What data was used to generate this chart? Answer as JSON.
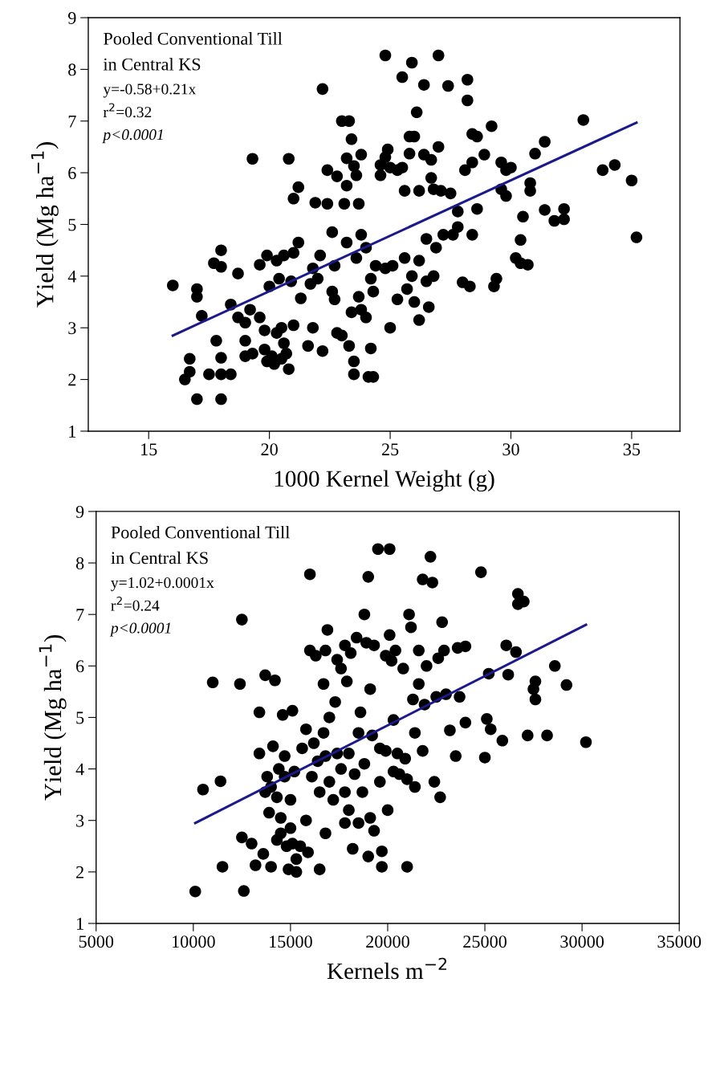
{
  "chart_data": [
    {
      "type": "scatter",
      "xlabel": "1000 Kernel Weight (g)",
      "ylabel": "Yield (Mg ha$^{−1}$)",
      "annotations": [
        "Pooled Conventional Till",
        "in Central KS",
        "y=-0.58+0.21x",
        "r$^{2}$=0.32",
        "p<0.0001"
      ],
      "xlim": [
        12.5,
        37
      ],
      "xticks": [
        15,
        20,
        25,
        30,
        35
      ],
      "ylim": [
        1,
        9
      ],
      "yticks": [
        1,
        2,
        3,
        4,
        5,
        6,
        7,
        8,
        9
      ],
      "grid": false,
      "legend": false,
      "marker": "circle",
      "series": [
        {
          "color": "#000000",
          "x": [
            16.0,
            16.5,
            16.7,
            16.7,
            17.0,
            17.0,
            17.0,
            17.2,
            17.5,
            17.7,
            17.8,
            18.0,
            18.0,
            18.0,
            18.0,
            18.0,
            18.4,
            18.4,
            18.7,
            18.7,
            19.0,
            19.0,
            19.0,
            19.2,
            19.3,
            19.3,
            19.6,
            19.6,
            19.8,
            19.8,
            19.9,
            19.9,
            20.0,
            20.1,
            20.2,
            20.3,
            20.3,
            20.4,
            20.5,
            20.5,
            20.6,
            20.6,
            20.7,
            20.8,
            20.8,
            20.9,
            21.0,
            21.0,
            21.0,
            21.2,
            21.2,
            21.3,
            21.6,
            21.7,
            21.8,
            21.8,
            21.9,
            22.0,
            22.1,
            22.2,
            22.2,
            22.4,
            22.4,
            22.6,
            22.6,
            22.7,
            22.7,
            22.8,
            22.8,
            23.0,
            23.0,
            23.1,
            23.2,
            23.2,
            23.2,
            23.3,
            23.3,
            23.4,
            23.4,
            23.5,
            23.5,
            23.5,
            23.6,
            23.6,
            23.7,
            23.7,
            23.8,
            23.8,
            23.8,
            24.0,
            24.0,
            24.1,
            24.2,
            24.2,
            24.3,
            24.3,
            24.4,
            24.6,
            24.6,
            24.8,
            24.8,
            24.8,
            24.9,
            25.0,
            25.0,
            25.1,
            25.3,
            25.3,
            25.5,
            25.5,
            25.6,
            25.6,
            25.7,
            25.8,
            25.8,
            25.9,
            25.9,
            26.0,
            26.0,
            26.1,
            26.2,
            26.2,
            26.2,
            26.4,
            26.4,
            26.5,
            26.5,
            26.6,
            26.7,
            26.7,
            26.8,
            26.8,
            26.9,
            27.0,
            27.0,
            27.1,
            27.2,
            27.4,
            27.5,
            27.6,
            27.8,
            27.8,
            28.0,
            28.1,
            28.2,
            28.2,
            28.3,
            28.4,
            28.4,
            28.4,
            28.6,
            28.6,
            28.9,
            29.2,
            29.3,
            29.4,
            29.6,
            29.6,
            29.8,
            29.8,
            30.0,
            30.2,
            30.4,
            30.4,
            30.5,
            30.7,
            30.8,
            30.8,
            31.0,
            31.4,
            31.4,
            31.8,
            32.2,
            32.2,
            33.0,
            33.8,
            34.3,
            35.0,
            35.2
          ],
          "values": [
            3.82,
            2.0,
            2.4,
            2.15,
            3.75,
            3.6,
            1.62,
            3.23,
            2.1,
            4.25,
            2.75,
            4.5,
            4.18,
            2.1,
            1.62,
            2.42,
            2.1,
            3.45,
            4.05,
            3.2,
            3.1,
            2.75,
            2.45,
            3.35,
            6.27,
            2.5,
            4.22,
            3.2,
            2.58,
            2.95,
            4.4,
            2.35,
            3.8,
            2.45,
            2.3,
            4.3,
            2.9,
            3.95,
            2.4,
            3.0,
            4.4,
            2.7,
            2.5,
            2.2,
            6.27,
            3.9,
            4.45,
            3.05,
            5.5,
            5.72,
            4.65,
            3.57,
            2.65,
            3.85,
            4.15,
            3.0,
            5.42,
            3.95,
            4.4,
            7.62,
            2.55,
            6.05,
            5.4,
            4.85,
            3.7,
            3.55,
            4.2,
            5.93,
            2.9,
            2.85,
            7.0,
            5.4,
            6.28,
            5.75,
            4.65,
            2.65,
            7.0,
            3.3,
            6.65,
            2.1,
            2.35,
            6.13,
            5.95,
            4.35,
            3.6,
            5.4,
            6.35,
            4.8,
            3.35,
            4.55,
            3.2,
            2.05,
            2.6,
            3.95,
            3.7,
            2.05,
            4.2,
            6.15,
            5.95,
            8.27,
            6.3,
            4.15,
            6.45,
            6.1,
            3.0,
            4.2,
            6.05,
            3.55,
            7.85,
            6.1,
            5.65,
            4.35,
            3.75,
            6.7,
            6.37,
            8.13,
            4.0,
            6.7,
            3.5,
            7.17,
            5.65,
            3.15,
            4.3,
            7.7,
            6.35,
            4.72,
            3.9,
            3.4,
            6.25,
            5.9,
            5.68,
            4.0,
            4.55,
            8.27,
            6.5,
            5.65,
            4.8,
            7.68,
            5.6,
            4.8,
            4.95,
            5.25,
            3.88,
            6.05,
            7.8,
            7.4,
            3.8,
            6.75,
            6.2,
            4.8,
            6.7,
            5.3,
            6.35,
            6.9,
            3.8,
            3.95,
            6.2,
            5.68,
            6.05,
            5.55,
            6.1,
            4.35,
            4.7,
            4.25,
            5.15,
            4.22,
            5.8,
            5.65,
            6.37,
            6.6,
            5.28,
            5.07,
            5.3,
            5.1,
            7.02,
            6.05,
            6.15,
            5.85,
            4.75
          ]
        },
        {
          "type": "line",
          "color": "#1a1a8c",
          "marker": "none",
          "x": [
            16.0,
            35.2
          ],
          "values": [
            2.85,
            6.97
          ]
        }
      ]
    },
    {
      "type": "scatter",
      "xlabel": "Kernels m$^{−2}$",
      "ylabel": "Yield (Mg ha$^{−1}$)",
      "annotations": [
        "Pooled Conventional Till",
        "in Central KS",
        "y=1.02+0.0001x",
        "r$^{2}$=0.24",
        "p<0.0001"
      ],
      "xlim": [
        5000,
        35000
      ],
      "xticks": [
        5000,
        10000,
        15000,
        20000,
        25000,
        30000,
        35000
      ],
      "ylim": [
        1,
        9
      ],
      "yticks": [
        1,
        2,
        3,
        4,
        5,
        6,
        7,
        8,
        9
      ],
      "grid": false,
      "legend": false,
      "marker": "circle",
      "series": [
        {
          "color": "#000000",
          "x": [
            10100,
            10500,
            11000,
            11400,
            11500,
            12400,
            12500,
            12500,
            12600,
            13000,
            13200,
            13400,
            13400,
            13600,
            13700,
            13700,
            13800,
            13900,
            14000,
            14000,
            14100,
            14200,
            14300,
            14300,
            14400,
            14500,
            14500,
            14600,
            14700,
            14700,
            14800,
            14900,
            15000,
            15000,
            15100,
            15100,
            15200,
            15300,
            15300,
            15500,
            15600,
            15800,
            15800,
            15900,
            16000,
            16000,
            16100,
            16200,
            16300,
            16400,
            16500,
            16500,
            16700,
            16700,
            16800,
            16800,
            16800,
            16900,
            17000,
            17000,
            17200,
            17300,
            17400,
            17400,
            17600,
            17600,
            17800,
            17800,
            17800,
            17900,
            18000,
            18000,
            18100,
            18200,
            18300,
            18400,
            18500,
            18500,
            18600,
            18700,
            18800,
            18800,
            18900,
            19000,
            19000,
            19100,
            19100,
            19200,
            19300,
            19300,
            19500,
            19600,
            19600,
            19700,
            19700,
            19900,
            19900,
            20000,
            20100,
            20100,
            20200,
            20300,
            20300,
            20400,
            20500,
            20600,
            20800,
            20900,
            21000,
            21000,
            21100,
            21200,
            21300,
            21400,
            21400,
            21600,
            21600,
            21800,
            21800,
            21900,
            22000,
            22200,
            22300,
            22400,
            22500,
            22600,
            22700,
            22800,
            22900,
            23000,
            23200,
            23500,
            23600,
            23700,
            24000,
            24000,
            24800,
            25000,
            25100,
            25200,
            25300,
            25900,
            26100,
            26200,
            26600,
            26700,
            26700,
            27000,
            27200,
            27500,
            27600,
            27600,
            28200,
            28600,
            29200,
            30200
          ],
          "values": [
            1.62,
            3.6,
            5.68,
            3.76,
            2.1,
            5.65,
            2.67,
            6.9,
            1.63,
            2.55,
            2.13,
            5.1,
            4.3,
            2.35,
            3.55,
            5.82,
            3.85,
            3.15,
            2.1,
            3.65,
            4.44,
            5.72,
            2.62,
            3.45,
            4.0,
            3.05,
            2.75,
            5.05,
            4.25,
            3.85,
            2.5,
            2.05,
            3.4,
            2.85,
            5.13,
            2.55,
            3.95,
            2.25,
            2.0,
            2.5,
            4.4,
            4.77,
            3.0,
            2.38,
            7.78,
            6.3,
            3.85,
            4.5,
            6.2,
            4.15,
            2.05,
            3.55,
            5.65,
            4.7,
            6.3,
            4.25,
            2.75,
            6.7,
            5.0,
            3.75,
            3.4,
            5.3,
            6.12,
            4.3,
            5.95,
            4.0,
            6.4,
            2.95,
            3.55,
            5.7,
            4.3,
            3.2,
            6.25,
            2.45,
            3.9,
            6.55,
            4.7,
            2.95,
            5.1,
            3.55,
            7.0,
            4.1,
            6.45,
            7.73,
            2.3,
            5.55,
            3.05,
            4.65,
            6.4,
            2.8,
            8.27,
            4.4,
            3.75,
            2.1,
            2.4,
            6.2,
            4.35,
            3.2,
            8.27,
            6.6,
            6.1,
            4.95,
            3.95,
            6.3,
            4.3,
            3.9,
            5.95,
            4.2,
            3.8,
            2.1,
            7.0,
            6.75,
            5.35,
            4.7,
            3.65,
            6.3,
            5.65,
            7.68,
            4.35,
            5.25,
            6.0,
            8.12,
            7.62,
            3.75,
            5.4,
            6.15,
            3.45,
            6.85,
            6.3,
            5.45,
            4.75,
            4.25,
            6.35,
            5.4,
            6.38,
            4.9,
            7.82,
            4.22,
            4.97,
            5.85,
            4.77,
            4.55,
            6.4,
            5.83,
            6.27,
            7.4,
            7.2,
            7.25,
            4.65,
            5.55,
            5.7,
            5.35,
            4.65,
            6.0,
            5.63,
            4.52
          ]
        },
        {
          "type": "line",
          "color": "#1a1a8c",
          "marker": "none",
          "x": [
            10100,
            30200
          ],
          "values": [
            2.95,
            6.8
          ]
        }
      ]
    }
  ]
}
